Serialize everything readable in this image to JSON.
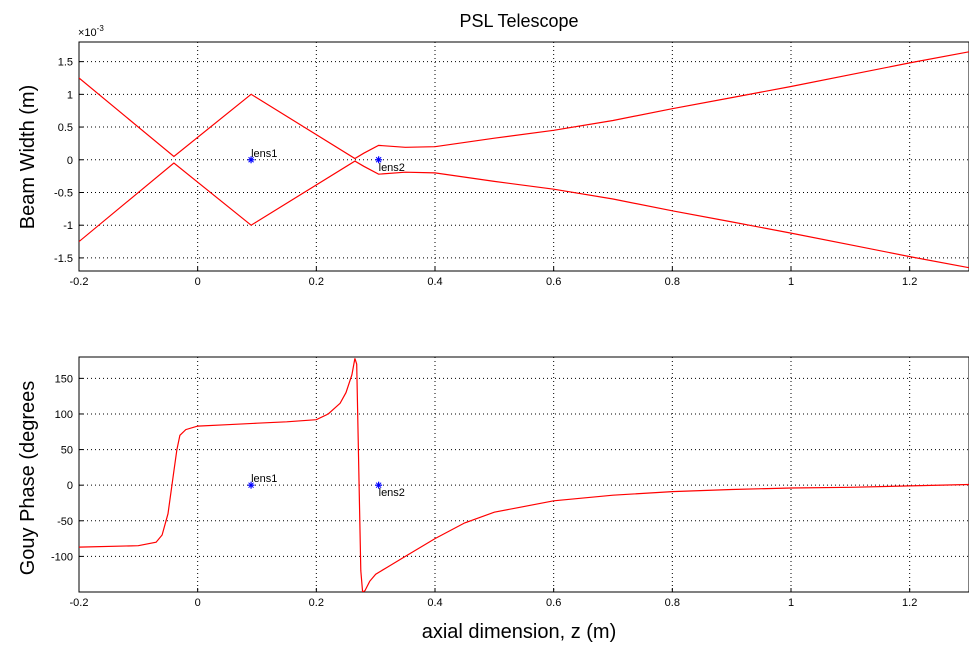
{
  "chart_data": [
    {
      "type": "line",
      "title": "PSL Telescope",
      "xlabel": "",
      "ylabel": "Beam Width (m)",
      "y_multiplier_label": "x 10^-3",
      "xlim": [
        -0.2,
        1.3
      ],
      "ylim": [
        -1.7,
        1.8
      ],
      "grid": true,
      "line_color": "#ff0000",
      "marker_color": "#0000ff",
      "x_ticks": [
        -0.2,
        0,
        0.2,
        0.4,
        0.6,
        0.8,
        1,
        1.2
      ],
      "x_tick_labels": [
        "-0.2",
        "0",
        "0.2",
        "0.4",
        "0.6",
        "0.8",
        "1",
        "1.2"
      ],
      "y_ticks": [
        1.5,
        1,
        0.5,
        0,
        -0.5,
        -1,
        -1.5
      ],
      "y_tick_labels": [
        "1.5",
        "1",
        "0.5",
        "0",
        "-0.5",
        "-1",
        "-1.5"
      ],
      "series": [
        {
          "x": [
            -0.2,
            -0.04,
            0.09,
            0.265,
            0.28,
            0.305,
            0.35,
            0.4,
            0.5,
            0.6,
            0.7,
            0.8,
            0.9,
            1.0,
            1.1,
            1.2,
            1.3
          ],
          "y": [
            1.25,
            0.05,
            1.0,
            0.02,
            0.1,
            0.22,
            0.19,
            0.2,
            0.33,
            0.45,
            0.6,
            0.78,
            0.95,
            1.12,
            1.3,
            1.48,
            1.65
          ]
        },
        {
          "x": [
            -0.2,
            -0.04,
            0.09,
            0.265,
            0.28,
            0.305,
            0.35,
            0.4,
            0.5,
            0.6,
            0.7,
            0.8,
            0.9,
            1.0,
            1.1,
            1.2,
            1.3
          ],
          "y": [
            -1.25,
            -0.05,
            -1.0,
            -0.02,
            -0.1,
            -0.22,
            -0.19,
            -0.2,
            -0.33,
            -0.45,
            -0.6,
            -0.78,
            -0.95,
            -1.12,
            -1.3,
            -1.48,
            -1.65
          ]
        }
      ],
      "markers": [
        {
          "x": 0.09,
          "y": 0,
          "label": "lens1"
        },
        {
          "x": 0.305,
          "y": 0,
          "label": "lens2"
        }
      ]
    },
    {
      "type": "line",
      "title": "",
      "xlabel": "axial dimension, z (m)",
      "ylabel": "Gouy Phase (degrees",
      "xlim": [
        -0.2,
        1.3
      ],
      "ylim": [
        -150,
        180
      ],
      "grid": true,
      "line_color": "#ff0000",
      "marker_color": "#0000ff",
      "x_ticks": [
        -0.2,
        0,
        0.2,
        0.4,
        0.6,
        0.8,
        1,
        1.2
      ],
      "x_tick_labels": [
        "-0.2",
        "0",
        "0.2",
        "0.4",
        "0.6",
        "0.8",
        "1",
        "1.2"
      ],
      "y_ticks": [
        150,
        100,
        50,
        0,
        -50,
        -100
      ],
      "y_tick_labels": [
        "150",
        "100",
        "50",
        "0",
        "-50",
        "-100"
      ],
      "series": [
        {
          "x": [
            -0.2,
            -0.1,
            -0.07,
            -0.06,
            -0.05,
            -0.04,
            -0.035,
            -0.03,
            -0.02,
            0.0,
            0.05,
            0.1,
            0.15,
            0.2,
            0.22,
            0.24,
            0.25,
            0.26,
            0.265,
            0.268,
            0.272,
            0.275,
            0.278,
            0.282,
            0.29,
            0.3,
            0.32,
            0.35,
            0.4,
            0.45,
            0.5,
            0.6,
            0.7,
            0.8,
            0.9,
            1.0,
            1.1,
            1.2,
            1.3
          ],
          "y": [
            -87,
            -85,
            -80,
            -70,
            -40,
            20,
            50,
            70,
            78,
            83,
            85,
            87,
            89,
            92,
            100,
            115,
            130,
            155,
            178,
            170,
            0,
            -120,
            -150,
            -148,
            -135,
            -125,
            -115,
            -100,
            -75,
            -53,
            -38,
            -22,
            -14,
            -9,
            -6,
            -4,
            -3,
            -1,
            1
          ]
        }
      ],
      "markers": [
        {
          "x": 0.09,
          "y": 0,
          "label": "lens1"
        },
        {
          "x": 0.305,
          "y": 0,
          "label": "lens2"
        }
      ]
    }
  ]
}
